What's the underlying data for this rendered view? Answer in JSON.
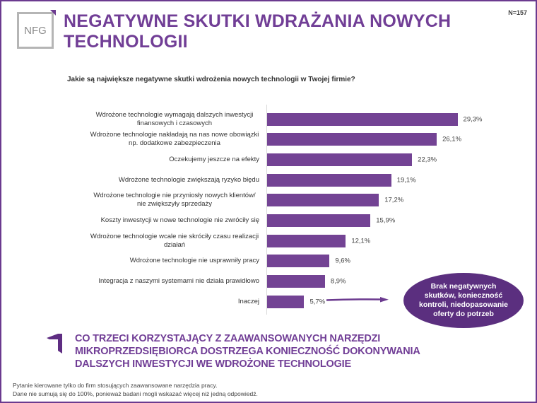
{
  "header": {
    "logo_text": "NFG",
    "title": "NEGATYWNE SKUTKI WDRAŻANIA NOWYCH TECHNOLOGII",
    "sample_size": "N=157"
  },
  "question": "Jakie są największe negatywne skutki wdrożenia nowych technologii w Twojej firmie?",
  "chart_data": {
    "type": "bar",
    "orientation": "horizontal",
    "title": "Jakie są największe negatywne skutki wdrożenia nowych technologii w Twojej firmie?",
    "xlabel": "",
    "ylabel": "",
    "categories": [
      "Wdrożone technologie wymagają dalszych inwestycji finansowych i czasowych",
      "Wdrożone technologie nakładają na nas nowe obowiązki np. dodatkowe zabezpieczenia",
      "Oczekujemy jeszcze na efekty",
      "Wdrożone technologie zwiększają ryzyko błędu",
      "Wdrożone technologie nie przyniosły nowych klientów/ nie zwiększyły sprzedaży",
      "Koszty inwestycji w nowe technologie nie zwróciły się",
      "Wdrożone technologie wcale nie skróciły czasu realizacji działań",
      "Wdrożone technologie nie usprawniły pracy",
      "Integracja z naszymi systemami nie działa prawidłowo",
      "Inaczej"
    ],
    "values": [
      29.3,
      26.1,
      22.3,
      19.1,
      17.2,
      15.9,
      12.1,
      9.6,
      8.9,
      5.7
    ],
    "value_labels": [
      "29,3%",
      "26,1%",
      "22,3%",
      "19,1%",
      "17,2%",
      "15,9%",
      "12,1%",
      "9,6%",
      "8,9%",
      "5,7%"
    ],
    "unit": "%",
    "grid": false,
    "legend": null,
    "bar_color": "#734394",
    "annotation": "Brak negatywnych skutków, konieczność kontroli, niedopasowanie oferty do potrzeb"
  },
  "callout": {
    "text": "Brak negatywnych skutków, konieczność kontroli, niedopasowanie oferty do potrzeb"
  },
  "conclusion": {
    "text": "CO TRZECI KORZYSTAJĄCY Z ZAAWANSOWANYCH NARZĘDZI\nMIKROPRZEDSIĘBIORCA DOSTRZEGA KONIECZNOŚĆ DOKONYWANIA\nDALSZYCH INWESTYCJI WE WDROŻONE TECHNOLOGIE"
  },
  "footnotes": {
    "line1": "Pytanie kierowane tylko do firm stosujących zaawansowane narzędzia pracy.",
    "line2": "Dane nie sumują się do 100%, ponieważ badani mogli wskazać więcej niż jedną odpowiedź."
  },
  "colors": {
    "brand": "#713e96",
    "bar": "#734394",
    "callout": "#5b2f7f"
  }
}
